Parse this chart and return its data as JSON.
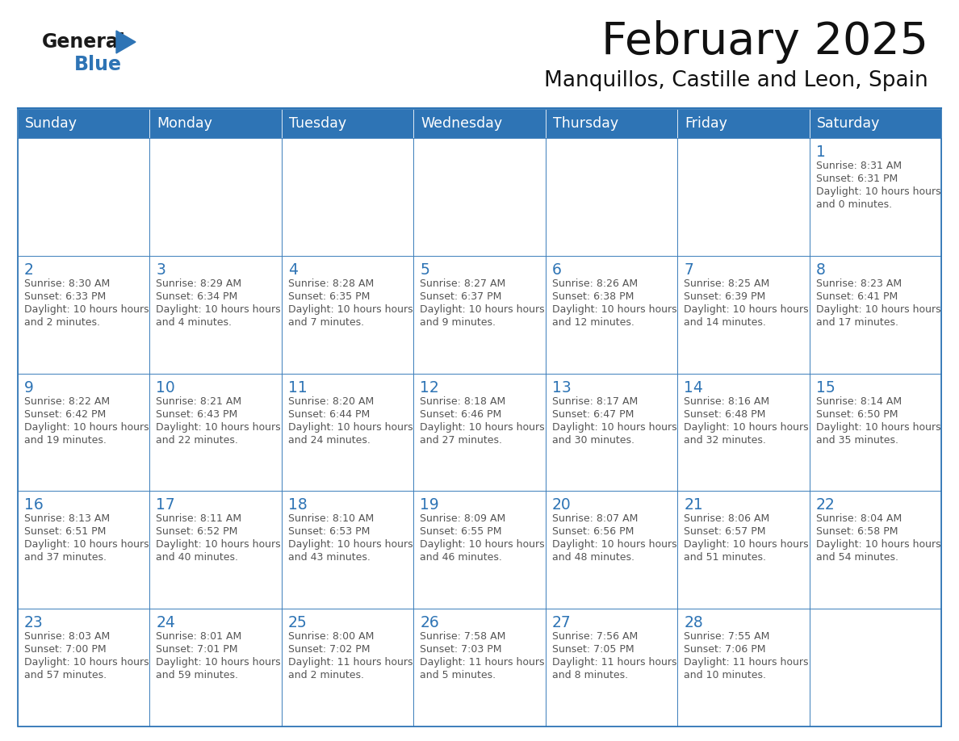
{
  "title": "February 2025",
  "subtitle": "Manquillos, Castille and Leon, Spain",
  "days_of_week": [
    "Sunday",
    "Monday",
    "Tuesday",
    "Wednesday",
    "Thursday",
    "Friday",
    "Saturday"
  ],
  "header_bg": "#2E74B5",
  "header_text": "#FFFFFF",
  "cell_bg": "#FFFFFF",
  "cell_border": "#2E74B5",
  "day_num_color": "#2E74B5",
  "info_color": "#555555",
  "title_color": "#111111",
  "subtitle_color": "#111111",
  "logo_general_color": "#1a1a1a",
  "logo_blue_color": "#2E74B5",
  "calendar": [
    [
      null,
      null,
      null,
      null,
      null,
      null,
      {
        "day": 1,
        "sunrise": "8:31 AM",
        "sunset": "6:31 PM",
        "daylight": "10 hours and 0 minutes"
      }
    ],
    [
      {
        "day": 2,
        "sunrise": "8:30 AM",
        "sunset": "6:33 PM",
        "daylight": "10 hours and 2 minutes"
      },
      {
        "day": 3,
        "sunrise": "8:29 AM",
        "sunset": "6:34 PM",
        "daylight": "10 hours and 4 minutes"
      },
      {
        "day": 4,
        "sunrise": "8:28 AM",
        "sunset": "6:35 PM",
        "daylight": "10 hours and 7 minutes"
      },
      {
        "day": 5,
        "sunrise": "8:27 AM",
        "sunset": "6:37 PM",
        "daylight": "10 hours and 9 minutes"
      },
      {
        "day": 6,
        "sunrise": "8:26 AM",
        "sunset": "6:38 PM",
        "daylight": "10 hours and 12 minutes"
      },
      {
        "day": 7,
        "sunrise": "8:25 AM",
        "sunset": "6:39 PM",
        "daylight": "10 hours and 14 minutes"
      },
      {
        "day": 8,
        "sunrise": "8:23 AM",
        "sunset": "6:41 PM",
        "daylight": "10 hours and 17 minutes"
      }
    ],
    [
      {
        "day": 9,
        "sunrise": "8:22 AM",
        "sunset": "6:42 PM",
        "daylight": "10 hours and 19 minutes"
      },
      {
        "day": 10,
        "sunrise": "8:21 AM",
        "sunset": "6:43 PM",
        "daylight": "10 hours and 22 minutes"
      },
      {
        "day": 11,
        "sunrise": "8:20 AM",
        "sunset": "6:44 PM",
        "daylight": "10 hours and 24 minutes"
      },
      {
        "day": 12,
        "sunrise": "8:18 AM",
        "sunset": "6:46 PM",
        "daylight": "10 hours and 27 minutes"
      },
      {
        "day": 13,
        "sunrise": "8:17 AM",
        "sunset": "6:47 PM",
        "daylight": "10 hours and 30 minutes"
      },
      {
        "day": 14,
        "sunrise": "8:16 AM",
        "sunset": "6:48 PM",
        "daylight": "10 hours and 32 minutes"
      },
      {
        "day": 15,
        "sunrise": "8:14 AM",
        "sunset": "6:50 PM",
        "daylight": "10 hours and 35 minutes"
      }
    ],
    [
      {
        "day": 16,
        "sunrise": "8:13 AM",
        "sunset": "6:51 PM",
        "daylight": "10 hours and 37 minutes"
      },
      {
        "day": 17,
        "sunrise": "8:11 AM",
        "sunset": "6:52 PM",
        "daylight": "10 hours and 40 minutes"
      },
      {
        "day": 18,
        "sunrise": "8:10 AM",
        "sunset": "6:53 PM",
        "daylight": "10 hours and 43 minutes"
      },
      {
        "day": 19,
        "sunrise": "8:09 AM",
        "sunset": "6:55 PM",
        "daylight": "10 hours and 46 minutes"
      },
      {
        "day": 20,
        "sunrise": "8:07 AM",
        "sunset": "6:56 PM",
        "daylight": "10 hours and 48 minutes"
      },
      {
        "day": 21,
        "sunrise": "8:06 AM",
        "sunset": "6:57 PM",
        "daylight": "10 hours and 51 minutes"
      },
      {
        "day": 22,
        "sunrise": "8:04 AM",
        "sunset": "6:58 PM",
        "daylight": "10 hours and 54 minutes"
      }
    ],
    [
      {
        "day": 23,
        "sunrise": "8:03 AM",
        "sunset": "7:00 PM",
        "daylight": "10 hours and 57 minutes"
      },
      {
        "day": 24,
        "sunrise": "8:01 AM",
        "sunset": "7:01 PM",
        "daylight": "10 hours and 59 minutes"
      },
      {
        "day": 25,
        "sunrise": "8:00 AM",
        "sunset": "7:02 PM",
        "daylight": "11 hours and 2 minutes"
      },
      {
        "day": 26,
        "sunrise": "7:58 AM",
        "sunset": "7:03 PM",
        "daylight": "11 hours and 5 minutes"
      },
      {
        "day": 27,
        "sunrise": "7:56 AM",
        "sunset": "7:05 PM",
        "daylight": "11 hours and 8 minutes"
      },
      {
        "day": 28,
        "sunrise": "7:55 AM",
        "sunset": "7:06 PM",
        "daylight": "11 hours and 10 minutes"
      },
      null
    ]
  ],
  "fig_width": 11.88,
  "fig_height": 9.18,
  "dpi": 100
}
